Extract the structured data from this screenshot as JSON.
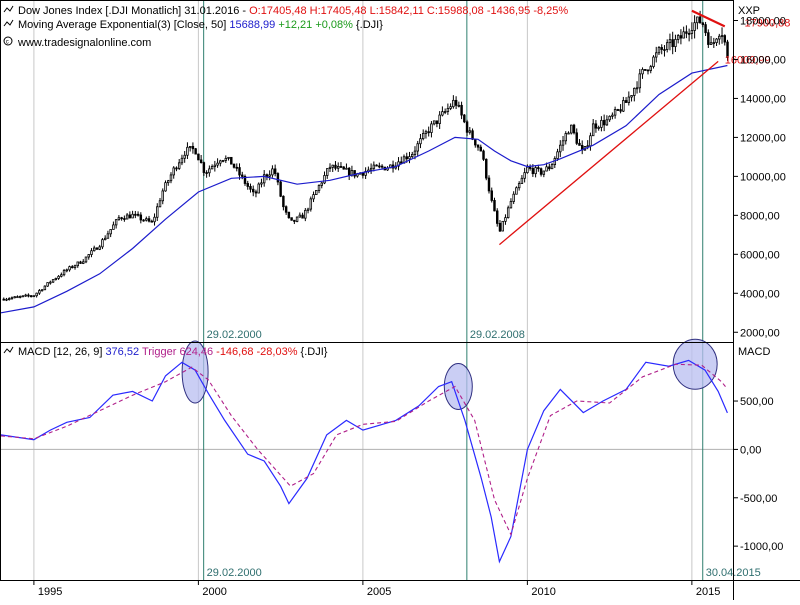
{
  "colors": {
    "background": "#ffffff",
    "panel_border": "#000000",
    "grid": "#c8c8c8",
    "candle": "#000000",
    "ema": "#1c1ccc",
    "trendline": "#e01010",
    "macd_line": "#2a2aff",
    "trigger_line": "#b0208a",
    "vline": "#2f7f6f",
    "vline_label": "#2f6f6f",
    "circle_fill": "#b8bef0",
    "circle_stroke": "#303080",
    "header_text": "#000000",
    "header_blue": "#1c1ccc",
    "header_red": "#e01010",
    "header_green": "#1a9a1a",
    "header_purple": "#b0208a",
    "label_red": "#e01010"
  },
  "header": {
    "line1": {
      "symbol": "Dow Jones Index [.DJI  Monatlich] 31.01.2016 - ",
      "ohlc": "O:17405,48 H:17405,48 L:15842,11 ",
      "close_change": "C:15988,08 -1436,95 -8,25%"
    },
    "line2": {
      "name": "Moving Average Exponential(3) [Close, 50] ",
      "value": "15688,99 ",
      "change": "+12,21 +0,08% ",
      "suffix": "{.DJI}"
    },
    "line3": "www.tradesignalonline.com"
  },
  "macd_header": {
    "name": "MACD [12, 26, 9] ",
    "macd_value": "376,52 ",
    "trigger_name": "Trigger ",
    "trigger_value": "624,46 ",
    "trigger_change": "-146,68 -28,03% ",
    "suffix": "{.DJI}"
  },
  "icons": [
    "chart-series-icon",
    "chart-series-icon",
    "copyright-icon",
    "chart-series-icon"
  ],
  "chart_data": [
    {
      "type": "candlestick",
      "title": "Dow Jones Index [.DJI Monatlich]",
      "axis_title": "XXP",
      "x_ticks": [
        "1995",
        "2000",
        "2005",
        "2010",
        "2015"
      ],
      "x_range": [
        1994.0,
        2016.25
      ],
      "ylim": [
        1500,
        19000
      ],
      "y_ticks": [
        2000,
        4000,
        6000,
        8000,
        10000,
        12000,
        14000,
        16000,
        18000
      ],
      "y_tick_labels": [
        "2000,00",
        "4000,00",
        "6000,00",
        "8000,00",
        "10000,00",
        "12000,00",
        "14000,00",
        "16000,00",
        "18000,00"
      ],
      "grid": "vertical at year ticks",
      "price_path": [
        {
          "t": 1994.0,
          "v": 3700
        },
        {
          "t": 1995.0,
          "v": 3900
        },
        {
          "t": 1995.5,
          "v": 4600
        },
        {
          "t": 1996.0,
          "v": 5200
        },
        {
          "t": 1996.5,
          "v": 5700
        },
        {
          "t": 1997.0,
          "v": 6500
        },
        {
          "t": 1997.6,
          "v": 7900
        },
        {
          "t": 1998.0,
          "v": 8000
        },
        {
          "t": 1998.6,
          "v": 7600
        },
        {
          "t": 1998.9,
          "v": 9200
        },
        {
          "t": 1999.3,
          "v": 10500
        },
        {
          "t": 1999.6,
          "v": 11300
        },
        {
          "t": 1999.9,
          "v": 11400
        },
        {
          "t": 2000.2,
          "v": 10200
        },
        {
          "t": 2000.7,
          "v": 11000
        },
        {
          "t": 2001.0,
          "v": 10700
        },
        {
          "t": 2001.7,
          "v": 9000
        },
        {
          "t": 2002.0,
          "v": 10000
        },
        {
          "t": 2002.3,
          "v": 10400
        },
        {
          "t": 2002.6,
          "v": 8300
        },
        {
          "t": 2002.8,
          "v": 7600
        },
        {
          "t": 2003.2,
          "v": 8000
        },
        {
          "t": 2003.6,
          "v": 9300
        },
        {
          "t": 2004.0,
          "v": 10500
        },
        {
          "t": 2004.8,
          "v": 10100
        },
        {
          "t": 2005.3,
          "v": 10400
        },
        {
          "t": 2005.8,
          "v": 10500
        },
        {
          "t": 2006.5,
          "v": 11200
        },
        {
          "t": 2007.0,
          "v": 12400
        },
        {
          "t": 2007.5,
          "v": 13300
        },
        {
          "t": 2007.8,
          "v": 13900
        },
        {
          "t": 2008.2,
          "v": 12300
        },
        {
          "t": 2008.6,
          "v": 11300
        },
        {
          "t": 2008.9,
          "v": 8800
        },
        {
          "t": 2009.15,
          "v": 7100
        },
        {
          "t": 2009.5,
          "v": 8700
        },
        {
          "t": 2010.0,
          "v": 10400
        },
        {
          "t": 2010.4,
          "v": 10200
        },
        {
          "t": 2010.7,
          "v": 10500
        },
        {
          "t": 2011.3,
          "v": 12600
        },
        {
          "t": 2011.7,
          "v": 11100
        },
        {
          "t": 2012.0,
          "v": 12600
        },
        {
          "t": 2012.5,
          "v": 12900
        },
        {
          "t": 2013.0,
          "v": 13800
        },
        {
          "t": 2013.5,
          "v": 15300
        },
        {
          "t": 2014.0,
          "v": 16400
        },
        {
          "t": 2014.6,
          "v": 17000
        },
        {
          "t": 2015.0,
          "v": 17800
        },
        {
          "t": 2015.3,
          "v": 18000
        },
        {
          "t": 2015.6,
          "v": 16600
        },
        {
          "t": 2015.8,
          "v": 17500
        },
        {
          "t": 2015.95,
          "v": 17400
        },
        {
          "t": 2016.08,
          "v": 15988
        }
      ],
      "ema_path": [
        {
          "t": 1994.0,
          "v": 3000
        },
        {
          "t": 1995.0,
          "v": 3300
        },
        {
          "t": 1996.0,
          "v": 4100
        },
        {
          "t": 1997.0,
          "v": 5000
        },
        {
          "t": 1998.0,
          "v": 6300
        },
        {
          "t": 1999.0,
          "v": 7800
        },
        {
          "t": 2000.0,
          "v": 9200
        },
        {
          "t": 2001.0,
          "v": 9900
        },
        {
          "t": 2002.0,
          "v": 10000
        },
        {
          "t": 2003.0,
          "v": 9600
        },
        {
          "t": 2004.0,
          "v": 9800
        },
        {
          "t": 2005.0,
          "v": 10200
        },
        {
          "t": 2006.0,
          "v": 10500
        },
        {
          "t": 2007.0,
          "v": 11300
        },
        {
          "t": 2007.8,
          "v": 12000
        },
        {
          "t": 2008.5,
          "v": 11900
        },
        {
          "t": 2009.0,
          "v": 11300
        },
        {
          "t": 2009.5,
          "v": 10800
        },
        {
          "t": 2010.0,
          "v": 10500
        },
        {
          "t": 2010.5,
          "v": 10600
        },
        {
          "t": 2011.0,
          "v": 10900
        },
        {
          "t": 2012.0,
          "v": 11600
        },
        {
          "t": 2013.0,
          "v": 12600
        },
        {
          "t": 2014.0,
          "v": 14200
        },
        {
          "t": 2015.0,
          "v": 15300
        },
        {
          "t": 2016.08,
          "v": 15689
        }
      ],
      "annotations": {
        "vlines": [
          {
            "t": 2000.16,
            "label": "29.02.2000"
          },
          {
            "t": 2008.16,
            "label": "29.02.2008"
          },
          {
            "t": 2015.33,
            "label": ""
          }
        ],
        "uptrend_line": [
          {
            "t": 2009.15,
            "v": 6500
          },
          {
            "t": 2015.8,
            "v": 15900
          }
        ],
        "top_line": [
          {
            "t": 2015.0,
            "v": 18500
          },
          {
            "t": 2016.0,
            "v": 17700
          }
        ],
        "price_labels": [
          {
            "t": 2016.6,
            "v": 17900,
            "text": "17900,88"
          },
          {
            "t": 2016.0,
            "v": 16009,
            "text": "16009,99"
          }
        ]
      }
    },
    {
      "type": "line",
      "title": "MACD",
      "axis_title": "MACD",
      "ylim": [
        -1350,
        1100
      ],
      "y_ticks": [
        500,
        0,
        -500,
        -1000
      ],
      "y_tick_labels": [
        "500,00",
        "0,00",
        "-500,00",
        "-1000,00"
      ],
      "series": [
        {
          "name": "MACD [12, 26, 9]",
          "points": [
            {
              "t": 1994.0,
              "v": 150
            },
            {
              "t": 1995.0,
              "v": 100
            },
            {
              "t": 1995.5,
              "v": 200
            },
            {
              "t": 1996.0,
              "v": 280
            },
            {
              "t": 1996.7,
              "v": 330
            },
            {
              "t": 1997.4,
              "v": 560
            },
            {
              "t": 1998.0,
              "v": 600
            },
            {
              "t": 1998.6,
              "v": 500
            },
            {
              "t": 1999.0,
              "v": 760
            },
            {
              "t": 1999.5,
              "v": 900
            },
            {
              "t": 1999.9,
              "v": 820
            },
            {
              "t": 2000.3,
              "v": 580
            },
            {
              "t": 2000.8,
              "v": 300
            },
            {
              "t": 2001.5,
              "v": -50
            },
            {
              "t": 2002.0,
              "v": -120
            },
            {
              "t": 2002.5,
              "v": -380
            },
            {
              "t": 2002.75,
              "v": -560
            },
            {
              "t": 2003.3,
              "v": -300
            },
            {
              "t": 2003.9,
              "v": 150
            },
            {
              "t": 2004.5,
              "v": 300
            },
            {
              "t": 2005.0,
              "v": 200
            },
            {
              "t": 2006.0,
              "v": 300
            },
            {
              "t": 2006.7,
              "v": 450
            },
            {
              "t": 2007.3,
              "v": 650
            },
            {
              "t": 2007.7,
              "v": 700
            },
            {
              "t": 2008.1,
              "v": 300
            },
            {
              "t": 2008.6,
              "v": -300
            },
            {
              "t": 2008.9,
              "v": -700
            },
            {
              "t": 2009.15,
              "v": -1160
            },
            {
              "t": 2009.5,
              "v": -900
            },
            {
              "t": 2010.0,
              "v": 0
            },
            {
              "t": 2010.5,
              "v": 400
            },
            {
              "t": 2011.0,
              "v": 620
            },
            {
              "t": 2011.7,
              "v": 380
            },
            {
              "t": 2012.3,
              "v": 500
            },
            {
              "t": 2013.0,
              "v": 620
            },
            {
              "t": 2013.6,
              "v": 900
            },
            {
              "t": 2014.3,
              "v": 860
            },
            {
              "t": 2014.9,
              "v": 920
            },
            {
              "t": 2015.4,
              "v": 820
            },
            {
              "t": 2015.8,
              "v": 600
            },
            {
              "t": 2016.08,
              "v": 377
            }
          ]
        },
        {
          "name": "Trigger",
          "style": "dashed",
          "points": [
            {
              "t": 1994.0,
              "v": 140
            },
            {
              "t": 1995.0,
              "v": 110
            },
            {
              "t": 1996.0,
              "v": 240
            },
            {
              "t": 1997.0,
              "v": 400
            },
            {
              "t": 1998.0,
              "v": 560
            },
            {
              "t": 1999.0,
              "v": 700
            },
            {
              "t": 1999.8,
              "v": 850
            },
            {
              "t": 2000.3,
              "v": 720
            },
            {
              "t": 2001.0,
              "v": 350
            },
            {
              "t": 2001.8,
              "v": 0
            },
            {
              "t": 2002.8,
              "v": -380
            },
            {
              "t": 2003.5,
              "v": -250
            },
            {
              "t": 2004.2,
              "v": 150
            },
            {
              "t": 2005.0,
              "v": 260
            },
            {
              "t": 2006.0,
              "v": 290
            },
            {
              "t": 2007.0,
              "v": 500
            },
            {
              "t": 2007.8,
              "v": 650
            },
            {
              "t": 2008.4,
              "v": 300
            },
            {
              "t": 2009.0,
              "v": -520
            },
            {
              "t": 2009.5,
              "v": -880
            },
            {
              "t": 2010.0,
              "v": -300
            },
            {
              "t": 2010.7,
              "v": 350
            },
            {
              "t": 2011.5,
              "v": 500
            },
            {
              "t": 2012.5,
              "v": 480
            },
            {
              "t": 2013.5,
              "v": 750
            },
            {
              "t": 2014.5,
              "v": 880
            },
            {
              "t": 2015.3,
              "v": 870
            },
            {
              "t": 2015.9,
              "v": 700
            },
            {
              "t": 2016.08,
              "v": 624
            }
          ]
        }
      ],
      "annotations": {
        "circles": [
          {
            "t": 1999.9,
            "v": 800
          },
          {
            "t": 2007.9,
            "v": 650
          },
          {
            "t": 2015.1,
            "v": 880
          }
        ],
        "vlines": [
          {
            "t": 2000.16,
            "label": "29.02.2000"
          },
          {
            "t": 2008.16,
            "label": ""
          },
          {
            "t": 2015.33,
            "label": "30.04.2015"
          }
        ]
      }
    }
  ]
}
